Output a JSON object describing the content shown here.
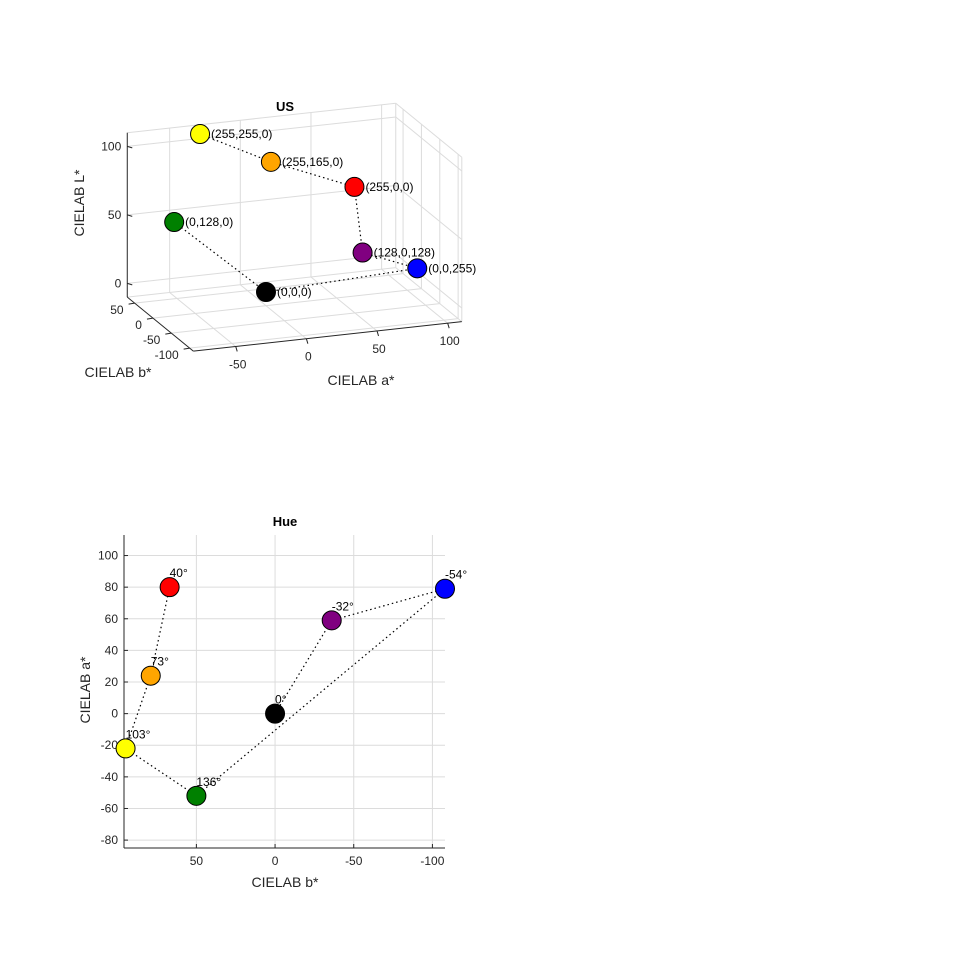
{
  "chart_data": [
    {
      "type": "scatter",
      "projection": "3d",
      "title": "US",
      "xlabel": "CIELAB a*",
      "ylabel": "CIELAB b*",
      "zlabel": "CIELAB L*",
      "xlim": [
        -80,
        110
      ],
      "ylim": [
        -110,
        70
      ],
      "zlim": [
        -10,
        110
      ],
      "xticks": [
        -50,
        0,
        50,
        100
      ],
      "yticks": [
        50,
        0,
        -50,
        -100
      ],
      "zticks": [
        0,
        50,
        100
      ],
      "grid": true,
      "marker": "circle",
      "connected": "dotted",
      "points": [
        {
          "label": "(255,255,0)",
          "color": "#ffff00",
          "a": -22,
          "b": 95,
          "L": 97
        },
        {
          "label": "(255,165,0)",
          "color": "#ffa500",
          "a": 24,
          "b": 79,
          "L": 75
        },
        {
          "label": "(255,0,0)",
          "color": "#ff0000",
          "a": 80,
          "b": 67,
          "L": 53
        },
        {
          "label": "(128,0,128)",
          "color": "#800080",
          "a": 59,
          "b": -36,
          "L": 30
        },
        {
          "label": "(0,0,255)",
          "color": "#0000ff",
          "a": 79,
          "b": -108,
          "L": 32
        },
        {
          "label": "(0,0,0)",
          "color": "#000000",
          "a": 0,
          "b": 0,
          "L": 0
        },
        {
          "label": "(0,128,0)",
          "color": "#008000",
          "a": -52,
          "b": 50,
          "L": 46
        }
      ]
    },
    {
      "type": "scatter",
      "title": "Hue",
      "xlabel": "CIELAB b*",
      "ylabel": "CIELAB a*",
      "xlim": [
        96,
        -108
      ],
      "ylim": [
        -85,
        113
      ],
      "xticks": [
        50,
        0,
        -50,
        -100
      ],
      "yticks": [
        100,
        80,
        60,
        40,
        20,
        0,
        -20,
        -40,
        -60,
        -80
      ],
      "x_reversed": true,
      "grid": true,
      "marker": "circle",
      "connected": "dotted",
      "points": [
        {
          "label": "40°",
          "color": "#ff0000",
          "b": 67,
          "a": 80
        },
        {
          "label": "73°",
          "color": "#ffa500",
          "b": 79,
          "a": 24
        },
        {
          "label": "103°",
          "color": "#ffff00",
          "b": 95,
          "a": -22
        },
        {
          "label": "136°",
          "color": "#008000",
          "b": 50,
          "a": -52
        },
        {
          "label": "-54°",
          "color": "#0000ff",
          "b": -108,
          "a": 79
        },
        {
          "label": "-32°",
          "color": "#800080",
          "b": -36,
          "a": 59
        },
        {
          "label": "0°",
          "color": "#000000",
          "b": 0,
          "a": 0
        }
      ]
    }
  ]
}
